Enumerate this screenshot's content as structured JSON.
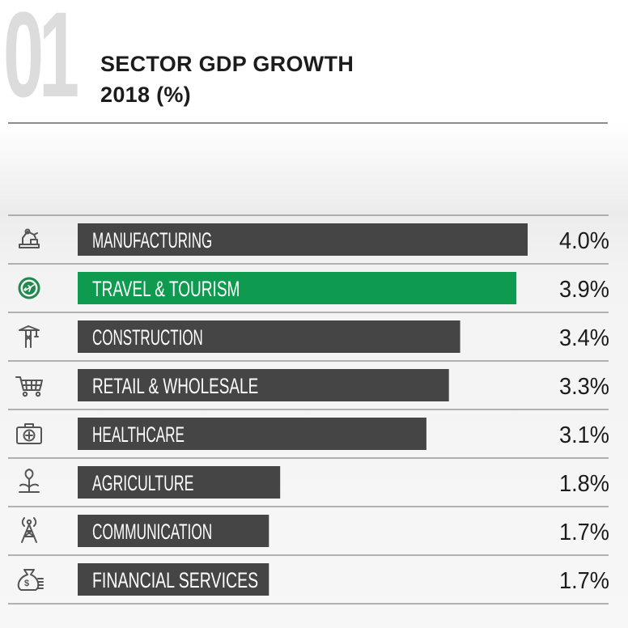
{
  "header": {
    "number": "01",
    "title_line1": "SECTOR GDP GROWTH",
    "title_line2": "2018 (%)"
  },
  "colors": {
    "bar_default": "#454545",
    "bar_highlight": "#0f9b4f",
    "rule": "#9a9a9a",
    "text": "#1c1c1c"
  },
  "chart_data": {
    "type": "bar",
    "orientation": "horizontal",
    "title": "SECTOR GDP GROWTH 2018 (%)",
    "categories": [
      "MANUFACTURING",
      "TRAVEL & TOURISM",
      "CONSTRUCTION",
      "RETAIL & WHOLESALE",
      "HEALTHCARE",
      "AGRICULTURE",
      "COMMUNICATION",
      "FINANCIAL SERVICES"
    ],
    "values": [
      4.0,
      3.9,
      3.4,
      3.3,
      3.1,
      1.8,
      1.7,
      1.7
    ],
    "value_labels": [
      "4.0%",
      "3.9%",
      "3.4%",
      "3.3%",
      "3.1%",
      "1.8%",
      "1.7%",
      "1.7%"
    ],
    "icons": [
      "robot-arm-icon",
      "airplane-icon",
      "crane-icon",
      "shopping-cart-icon",
      "medical-kit-icon",
      "plant-icon",
      "radio-tower-icon",
      "money-bag-icon"
    ],
    "highlight_index": 1,
    "xlim": [
      0,
      4.0
    ]
  }
}
